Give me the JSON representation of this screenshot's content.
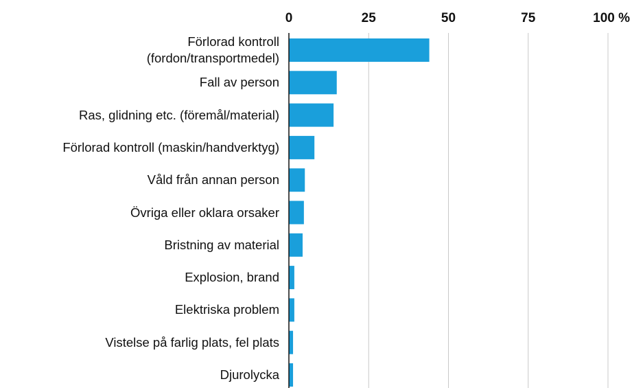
{
  "chart_data": {
    "type": "bar",
    "orientation": "horizontal",
    "categories": [
      "Förlorad kontroll\n(fordon/transportmedel)",
      "Fall av person",
      "Ras, glidning etc. (föremål/material)",
      "Förlorad kontroll (maskin/handverktyg)",
      "Våld från annan person",
      "Övriga eller oklara orsaker",
      "Bristning av material",
      "Explosion, brand",
      "Elektriska problem",
      "Vistelse på farlig plats, fel plats",
      "Djurolycka"
    ],
    "values": [
      44,
      15,
      14,
      8,
      5,
      4.7,
      4.3,
      1.7,
      1.7,
      1.3,
      1.3
    ],
    "color": "#1a9fdb",
    "xlim": [
      0,
      100
    ],
    "xticks": [
      0,
      25,
      50,
      75,
      {
        "value": 100,
        "label": "100 %"
      }
    ],
    "grid": true
  }
}
